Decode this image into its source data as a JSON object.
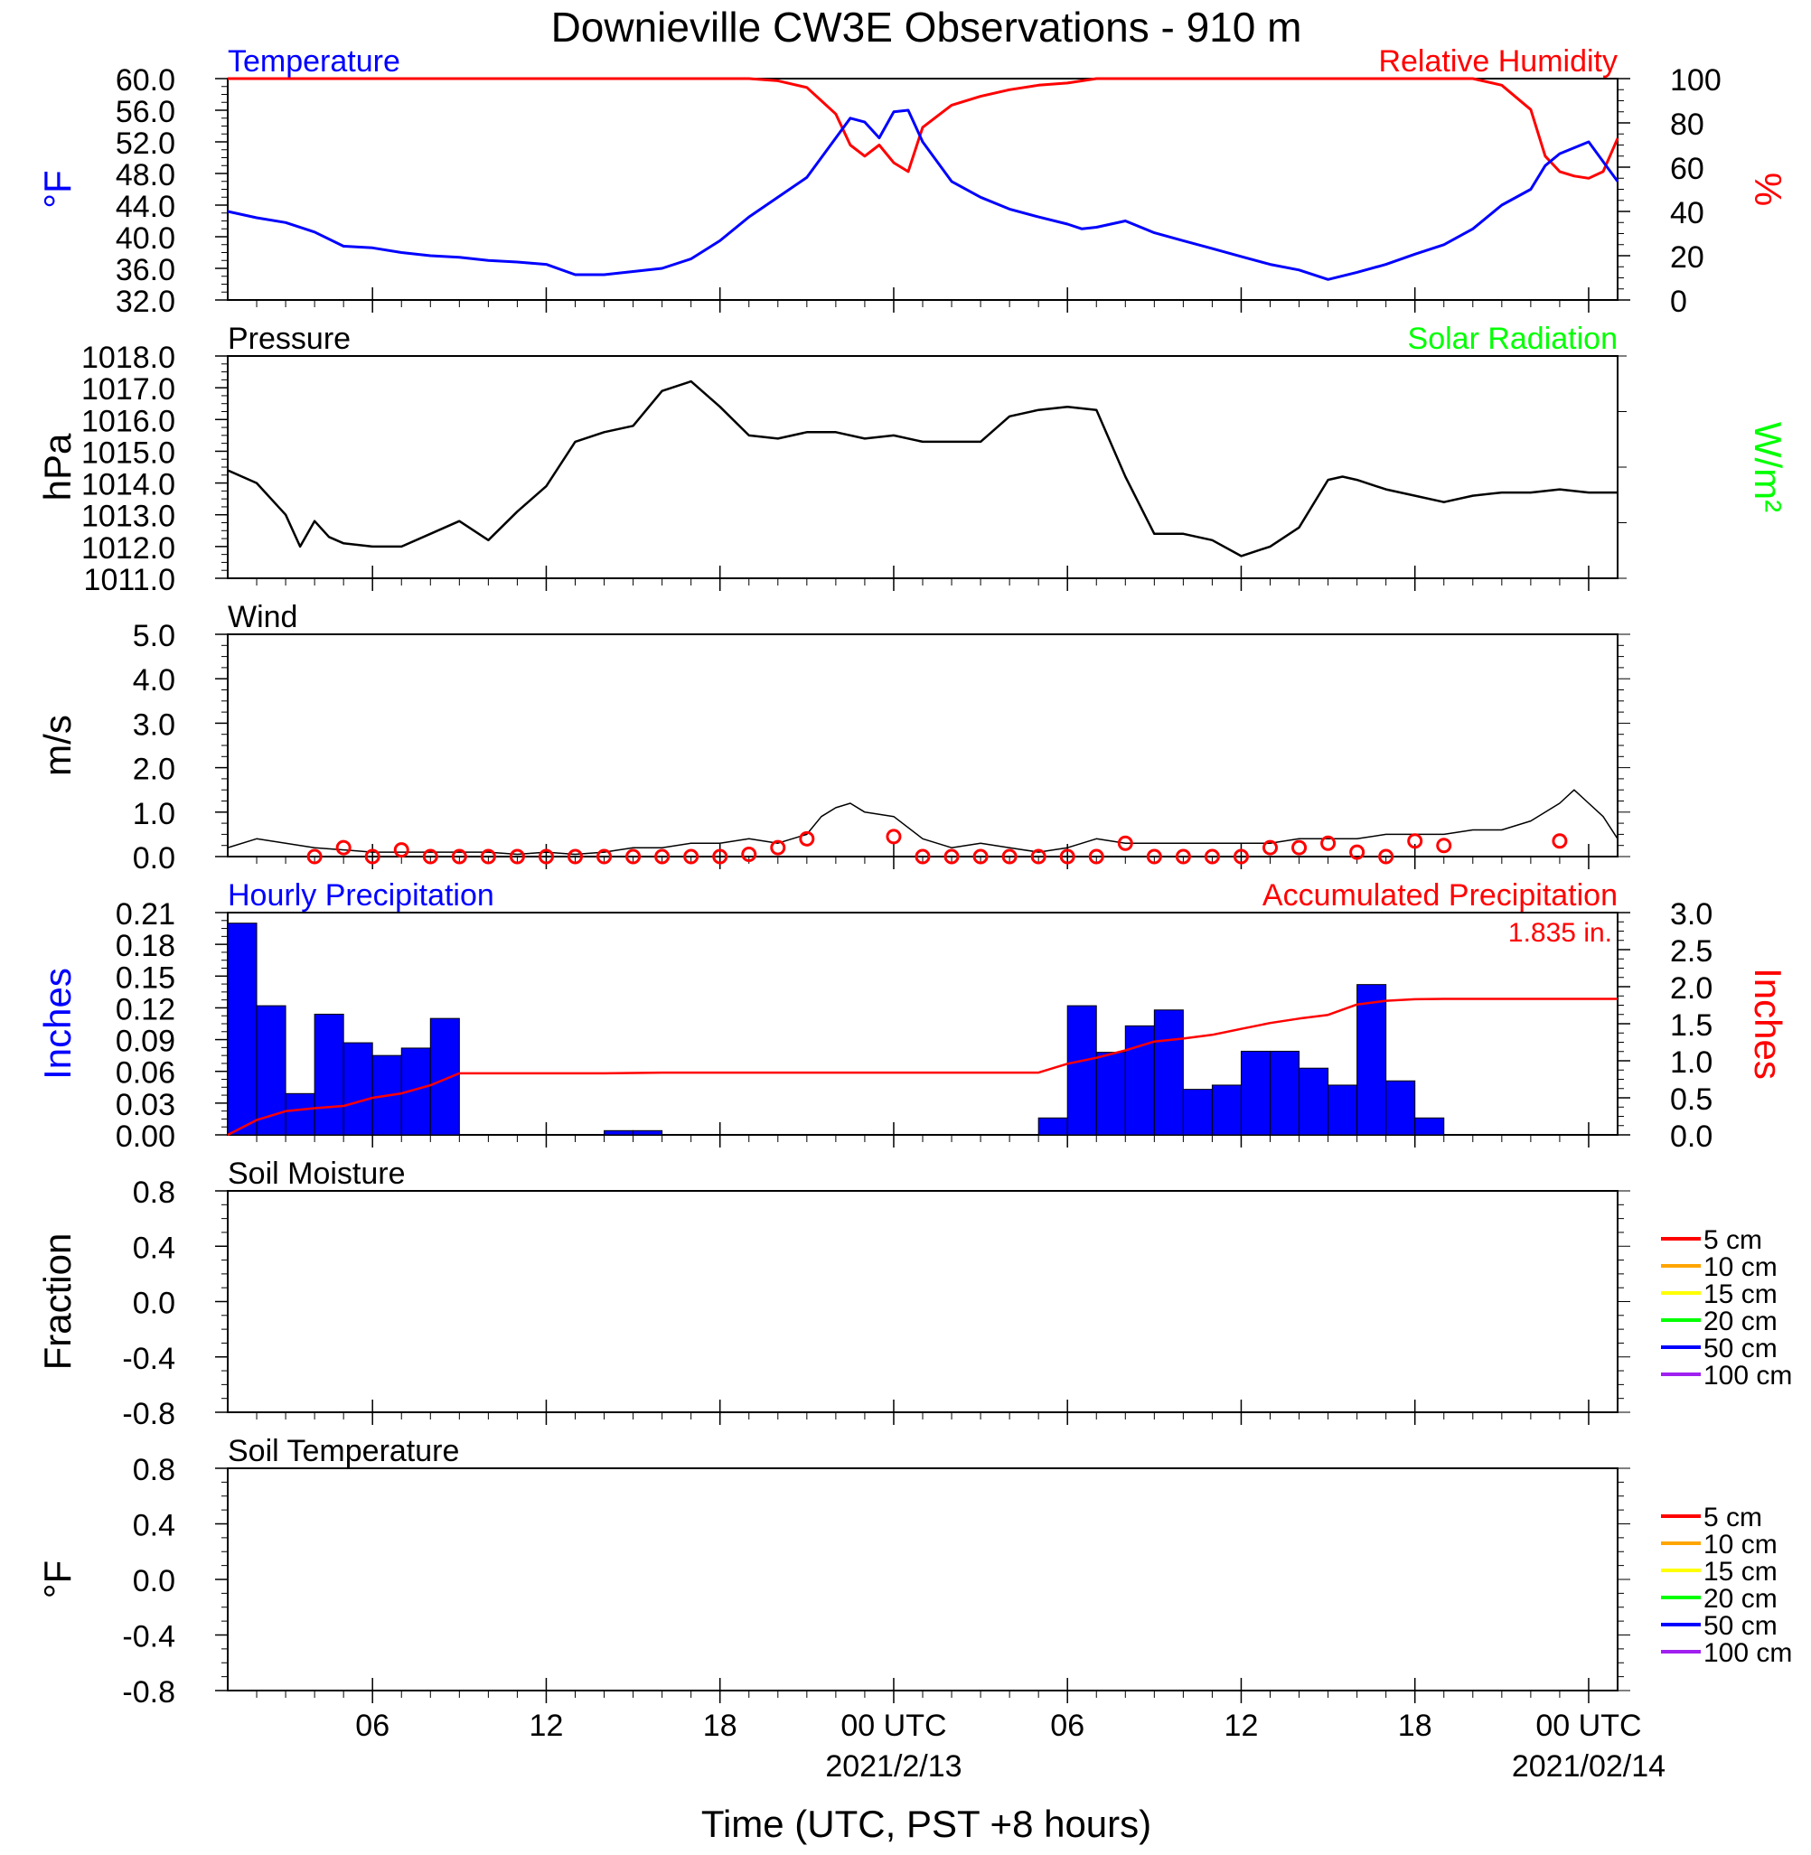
{
  "title": "Downieville CW3E Observations - 910 m",
  "colors": {
    "blue": "#0000ff",
    "red": "#ff0000",
    "green": "#00ff00",
    "black": "#000000",
    "soil_5cm": "#ff0000",
    "soil_10cm": "#ffa500",
    "soil_15cm": "#ffff00",
    "soil_20cm": "#00ff00",
    "soil_50cm": "#0000ff",
    "soil_100cm": "#a020f0"
  },
  "xaxis": {
    "ticks": [
      {
        "hour": 6,
        "line1": "06",
        "line2": ""
      },
      {
        "hour": 12,
        "line1": "12",
        "line2": ""
      },
      {
        "hour": 18,
        "line1": "18",
        "line2": ""
      },
      {
        "hour": 24,
        "line1": "00 UTC",
        "line2": "2021/2/13"
      },
      {
        "hour": 30,
        "line1": "06",
        "line2": ""
      },
      {
        "hour": 36,
        "line1": "12",
        "line2": ""
      },
      {
        "hour": 42,
        "line1": "18",
        "line2": ""
      },
      {
        "hour": 48,
        "line1": "00 UTC",
        "line2": "2021/02/14"
      }
    ],
    "label": "Time (UTC, PST +8 hours)"
  },
  "panels": {
    "temperature": {
      "left_title": "Temperature",
      "right_title": "Relative Humidity",
      "left_unit": "°F",
      "right_unit": "%",
      "left_ticks": [
        "60.0",
        "56.0",
        "52.0",
        "48.0",
        "44.0",
        "40.0",
        "36.0",
        "32.0"
      ],
      "right_ticks": [
        "100",
        "80",
        "60",
        "40",
        "20",
        "0"
      ]
    },
    "pressure": {
      "left_title": "Pressure",
      "right_title": "Solar Radiation",
      "left_unit": "hPa",
      "right_unit": "W/m²",
      "left_ticks": [
        "1018.0",
        "1017.0",
        "1016.0",
        "1015.0",
        "1014.0",
        "1013.0",
        "1012.0",
        "1011.0"
      ]
    },
    "wind": {
      "left_title": "Wind",
      "left_unit": "m/s",
      "left_ticks": [
        "5.0",
        "4.0",
        "3.0",
        "2.0",
        "1.0",
        "0.0"
      ]
    },
    "precip": {
      "left_title": "Hourly Precipitation",
      "right_title": "Accumulated Precipitation",
      "total": "1.835 in.",
      "left_unit": "Inches",
      "right_unit": "Inches",
      "left_ticks": [
        "0.21",
        "0.18",
        "0.15",
        "0.12",
        "0.09",
        "0.06",
        "0.03",
        "0.00"
      ],
      "right_ticks": [
        "3.0",
        "2.5",
        "2.0",
        "1.5",
        "1.0",
        "0.5",
        "0.0"
      ]
    },
    "soil_moisture": {
      "left_title": "Soil Moisture",
      "left_unit": "Fraction",
      "left_ticks": [
        "0.8",
        "0.4",
        "0.0",
        "-0.4",
        "-0.8"
      ],
      "legend": [
        "5 cm",
        "10 cm",
        "15 cm",
        "20 cm",
        "50 cm",
        "100 cm"
      ]
    },
    "soil_temperature": {
      "left_title": "Soil Temperature",
      "left_unit": "°F",
      "left_ticks": [
        "0.8",
        "0.4",
        "0.0",
        "-0.4",
        "-0.8"
      ],
      "legend": [
        "5 cm",
        "10 cm",
        "15 cm",
        "20 cm",
        "50 cm",
        "100 cm"
      ]
    }
  },
  "chart_data": [
    {
      "type": "line",
      "title": "Temperature",
      "ylabel": "°F",
      "ylim": [
        32,
        60
      ],
      "x_hours": [
        0,
        1,
        2,
        3,
        4,
        5,
        6,
        7,
        8,
        9,
        10,
        11,
        12,
        13,
        14,
        15,
        16,
        17,
        18,
        19,
        20,
        21,
        21.5,
        22,
        22.5,
        23,
        23.5,
        24,
        25,
        26,
        27,
        28,
        29,
        29.5,
        30,
        31,
        32,
        33,
        34,
        35,
        36,
        37,
        38,
        39,
        40,
        41,
        42,
        43,
        44,
        45,
        45.5,
        46,
        47,
        48
      ],
      "values": [
        43.2,
        42.4,
        41.8,
        40.6,
        38.8,
        38.6,
        38.0,
        37.6,
        37.4,
        37.0,
        36.8,
        36.5,
        35.2,
        35.2,
        35.6,
        36.0,
        37.2,
        39.5,
        42.5,
        45.0,
        47.5,
        52.5,
        55.0,
        54.5,
        52.5,
        55.8,
        56.0,
        52.0,
        47.0,
        45.0,
        43.5,
        42.5,
        41.6,
        41.0,
        41.2,
        42.0,
        40.5,
        39.5,
        38.5,
        37.5,
        36.5,
        35.8,
        34.6,
        35.5,
        36.5,
        37.8,
        39.0,
        41.0,
        44.0,
        46.0,
        49.0,
        50.5,
        52.0,
        47.0
      ]
    },
    {
      "type": "line",
      "title": "Relative Humidity",
      "ylabel": "%",
      "ylim": [
        0,
        100
      ],
      "x_hours": [
        0,
        18,
        19,
        20,
        20.5,
        21,
        21.5,
        22,
        22.5,
        23,
        23.5,
        24,
        25,
        26,
        27,
        28,
        29,
        30,
        31,
        32,
        33,
        34,
        35,
        36,
        37,
        38,
        39,
        40,
        41,
        42,
        43,
        44,
        45,
        45.5,
        46,
        46.5,
        47,
        47.5,
        48
      ],
      "values": [
        100,
        100,
        99,
        96,
        90,
        84,
        70,
        65,
        70,
        62,
        58,
        78,
        88,
        92,
        95,
        97,
        98,
        100,
        100,
        100,
        100,
        100,
        100,
        100,
        100,
        100,
        100,
        100,
        100,
        100,
        100,
        97,
        86,
        65,
        58,
        56,
        55,
        58,
        73
      ]
    },
    {
      "type": "line",
      "title": "Pressure",
      "ylabel": "hPa",
      "ylim": [
        1011,
        1018
      ],
      "x_hours": [
        0,
        1,
        2,
        2.5,
        3,
        3.5,
        4,
        5,
        6,
        7,
        8,
        9,
        10,
        11,
        12,
        13,
        14,
        15,
        16,
        17,
        18,
        19,
        20,
        21,
        22,
        23,
        24,
        25,
        26,
        27,
        28,
        29,
        30,
        31,
        32,
        33,
        34,
        35,
        36,
        37,
        38,
        38.5,
        39,
        40,
        41,
        42,
        43,
        44,
        45,
        46,
        47,
        48
      ],
      "values": [
        1014.4,
        1014.0,
        1013.0,
        1012.0,
        1012.8,
        1012.3,
        1012.1,
        1012.0,
        1012.0,
        1012.4,
        1012.8,
        1012.2,
        1013.1,
        1013.9,
        1015.3,
        1015.6,
        1015.8,
        1016.9,
        1017.2,
        1016.4,
        1015.5,
        1015.4,
        1015.6,
        1015.6,
        1015.4,
        1015.5,
        1015.3,
        1015.3,
        1015.3,
        1016.1,
        1016.3,
        1016.4,
        1016.3,
        1014.2,
        1012.4,
        1012.4,
        1012.2,
        1011.7,
        1012.0,
        1012.6,
        1014.1,
        1014.2,
        1014.1,
        1013.8,
        1013.6,
        1013.4,
        1013.6,
        1013.7,
        1013.7,
        1013.8,
        1013.7,
        1013.7
      ],
      "note_x": "pressure x_hours offset: see series"
    },
    {
      "type": "line",
      "title": "Wind",
      "ylabel": "m/s",
      "ylim": [
        0,
        5
      ],
      "x_hours": [
        0,
        1,
        2,
        3,
        4,
        5,
        6,
        7,
        8,
        9,
        10,
        11,
        12,
        13,
        14,
        15,
        16,
        17,
        18,
        19,
        20,
        20.5,
        21,
        21.5,
        22,
        23,
        24,
        25,
        26,
        27,
        28,
        29,
        30,
        31,
        32,
        33,
        34,
        35,
        36,
        37,
        38,
        39,
        40,
        41,
        42,
        43,
        44,
        45,
        46,
        46.5,
        47,
        47.5,
        48
      ],
      "values": [
        0.2,
        0.4,
        0.3,
        0.2,
        0.15,
        0.1,
        0.1,
        0.1,
        0.1,
        0.1,
        0.05,
        0.1,
        0.05,
        0.1,
        0.2,
        0.2,
        0.3,
        0.3,
        0.4,
        0.3,
        0.5,
        0.9,
        1.1,
        1.2,
        1.0,
        0.9,
        0.4,
        0.2,
        0.3,
        0.2,
        0.1,
        0.2,
        0.4,
        0.3,
        0.3,
        0.3,
        0.3,
        0.3,
        0.3,
        0.4,
        0.4,
        0.4,
        0.5,
        0.5,
        0.5,
        0.6,
        0.6,
        0.8,
        1.2,
        1.5,
        1.2,
        0.9,
        0.4
      ]
    },
    {
      "type": "scatter",
      "title": "Hourly Wind Speed",
      "x_hours": [
        3,
        4,
        5,
        6,
        7,
        8,
        9,
        10,
        11,
        12,
        13,
        14,
        15,
        16,
        17,
        18,
        19,
        20,
        23,
        24,
        25,
        26,
        27,
        28,
        29,
        30,
        31,
        32,
        33,
        34,
        35,
        36,
        37,
        38,
        39,
        40,
        41,
        42,
        46
      ],
      "values": [
        0.0,
        0.2,
        0.0,
        0.15,
        0.0,
        0.0,
        0.0,
        0.0,
        0.0,
        0.0,
        0.0,
        0.0,
        0.0,
        0.0,
        0.0,
        0.05,
        0.2,
        0.4,
        0.45,
        0.0,
        0.0,
        0.0,
        0.0,
        0.0,
        0.0,
        0.0,
        0.3,
        0.0,
        0.0,
        0.0,
        0.0,
        0.2,
        0.2,
        0.3,
        0.1,
        0.0,
        0.35,
        0.25,
        0.35
      ]
    },
    {
      "type": "bar",
      "title": "Hourly Precipitation",
      "ylabel": "Inches",
      "ylim": [
        0,
        0.21
      ],
      "x_hours": [
        0,
        1,
        2,
        3,
        4,
        5,
        6,
        7,
        13,
        14,
        28,
        29,
        30,
        31,
        32,
        33,
        34,
        35,
        36,
        37,
        38,
        39,
        40,
        41
      ],
      "values": [
        0.2,
        0.122,
        0.039,
        0.114,
        0.087,
        0.075,
        0.082,
        0.11,
        0.004,
        0.004,
        0.016,
        0.122,
        0.078,
        0.103,
        0.118,
        0.043,
        0.047,
        0.079,
        0.079,
        0.063,
        0.047,
        0.142,
        0.051,
        0.016
      ]
    },
    {
      "type": "line",
      "title": "Accumulated Precipitation",
      "ylabel": "Inches",
      "ylim": [
        0,
        3.0
      ],
      "x_hours": [
        0,
        1,
        2,
        3,
        4,
        5,
        6,
        7,
        8,
        13,
        15,
        28,
        29,
        30,
        31,
        32,
        33,
        34,
        35,
        36,
        37,
        38,
        39,
        40,
        41,
        42,
        48
      ],
      "values": [
        0.0,
        0.2,
        0.32,
        0.36,
        0.39,
        0.5,
        0.56,
        0.67,
        0.83,
        0.83,
        0.84,
        0.84,
        0.96,
        1.04,
        1.14,
        1.26,
        1.3,
        1.35,
        1.43,
        1.51,
        1.57,
        1.62,
        1.76,
        1.81,
        1.83,
        1.835,
        1.835
      ]
    }
  ]
}
